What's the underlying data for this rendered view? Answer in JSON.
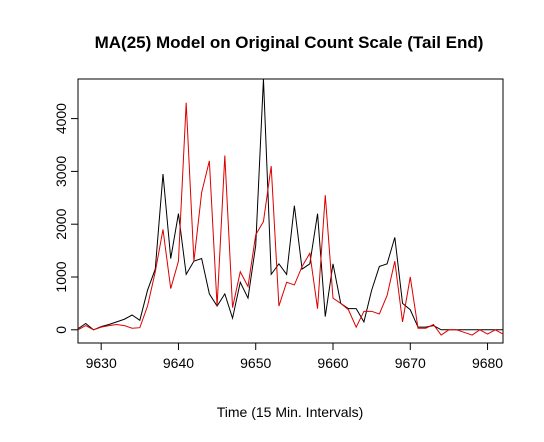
{
  "chart_data": {
    "type": "line",
    "title": "MA(25) Model on Original Count Scale (Tail End)",
    "xlabel": "Time (15 Min. Intervals)",
    "ylabel": "",
    "xlim": [
      9627,
      9682
    ],
    "ylim": [
      -250,
      4750
    ],
    "xticks": [
      9630,
      9640,
      9650,
      9660,
      9670,
      9680
    ],
    "yticks": [
      0,
      1000,
      2000,
      3000,
      4000
    ],
    "grid": false,
    "legend": "none",
    "x": [
      9627,
      9628,
      9629,
      9630,
      9631,
      9632,
      9633,
      9634,
      9635,
      9636,
      9637,
      9638,
      9639,
      9640,
      9641,
      9642,
      9643,
      9644,
      9645,
      9646,
      9647,
      9648,
      9649,
      9650,
      9651,
      9652,
      9653,
      9654,
      9655,
      9656,
      9657,
      9658,
      9659,
      9660,
      9661,
      9662,
      9663,
      9664,
      9665,
      9666,
      9667,
      9668,
      9669,
      9670,
      9671,
      9672,
      9673,
      9674,
      9675,
      9676,
      9677,
      9678,
      9679,
      9680,
      9681,
      9682
    ],
    "series": [
      {
        "color": "#000000",
        "values": [
          20,
          120,
          0,
          60,
          100,
          150,
          200,
          280,
          180,
          750,
          1150,
          2950,
          1350,
          2200,
          1050,
          1300,
          1350,
          680,
          450,
          680,
          220,
          900,
          600,
          1600,
          4750,
          1050,
          1250,
          1050,
          2350,
          1150,
          1250,
          2200,
          250,
          1250,
          500,
          400,
          400,
          150,
          750,
          1200,
          1250,
          1750,
          500,
          380,
          50,
          50,
          80,
          0,
          0,
          0,
          0,
          0,
          0,
          0,
          0,
          0
        ]
      },
      {
        "color": "#dd0000",
        "values": [
          0,
          80,
          0,
          50,
          80,
          100,
          80,
          30,
          40,
          450,
          1100,
          1900,
          780,
          1300,
          4300,
          1300,
          2600,
          3200,
          450,
          3300,
          420,
          1100,
          820,
          1800,
          2050,
          3100,
          450,
          900,
          850,
          1200,
          1450,
          400,
          2550,
          600,
          500,
          380,
          50,
          350,
          350,
          300,
          650,
          1300,
          150,
          1000,
          30,
          30,
          100,
          -100,
          0,
          0,
          -50,
          -100,
          0,
          -80,
          0,
          -80
        ]
      }
    ]
  }
}
